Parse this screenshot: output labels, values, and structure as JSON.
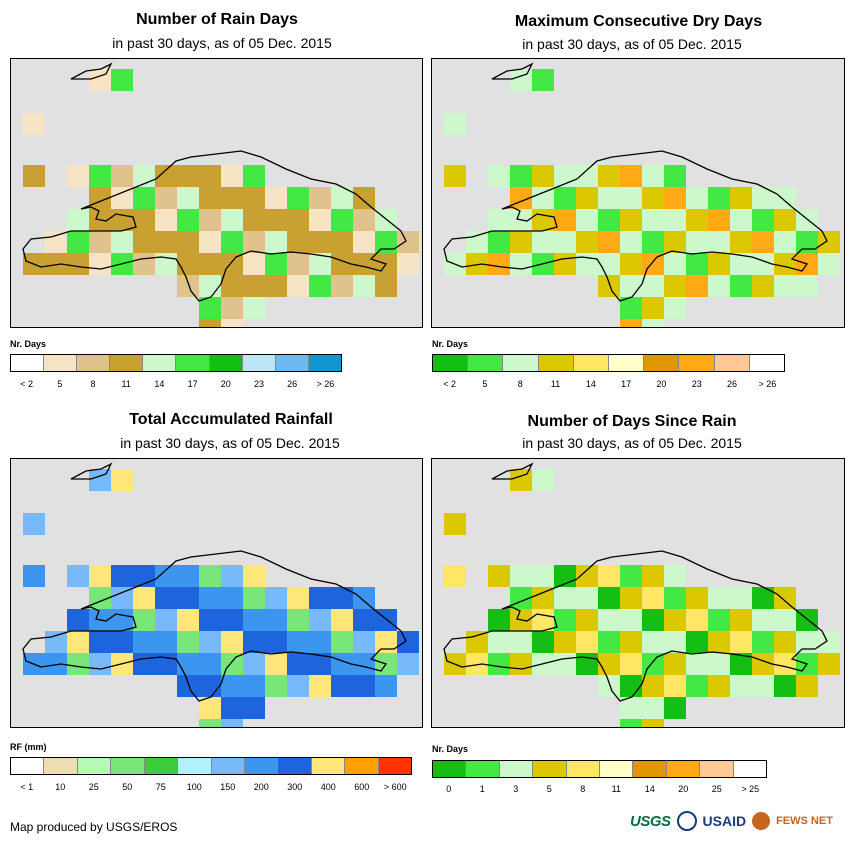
{
  "panels": [
    {
      "id": "rain-days",
      "title": "Number of Rain Days",
      "subtitle": "in past 30 days, as of 05 Dec. 2015",
      "legend": {
        "title": "Nr. Days",
        "colors": [
          "#ffffff",
          "#f6e4c4",
          "#e0c38c",
          "#c9a032",
          "#ccf8cc",
          "#44e844",
          "#14be14",
          "#bee6fa",
          "#6eb9f0",
          "#1496d2"
        ],
        "labels": [
          "< 2",
          "5",
          "8",
          "11",
          "14",
          "17",
          "20",
          "23",
          "26",
          "> 26"
        ]
      }
    },
    {
      "id": "max-dry-days",
      "title": "Maximum Consecutive Dry Days",
      "subtitle": "in past 30 days, as of 05 Dec. 2015",
      "legend": {
        "title": "Nr. Days",
        "colors": [
          "#14be14",
          "#44e844",
          "#ccf8cc",
          "#dcc800",
          "#ffe664",
          "#ffffc8",
          "#e09600",
          "#ffaa14",
          "#ffc896",
          "#ffffff"
        ],
        "labels": [
          "< 2",
          "5",
          "8",
          "11",
          "14",
          "17",
          "20",
          "23",
          "26",
          "> 26"
        ]
      }
    },
    {
      "id": "total-rainfall",
      "title": "Total Accumulated Rainfall",
      "subtitle": "in past 30 days, as of 05 Dec. 2015",
      "legend": {
        "title": "RF (mm)",
        "colors": [
          "#ffffff",
          "#f0dcb4",
          "#b4fab4",
          "#78e678",
          "#3ccd3c",
          "#b4f0fa",
          "#78b9fa",
          "#3c96f0",
          "#1e64dc",
          "#ffe678",
          "#ffa000",
          "#ff3200"
        ],
        "labels": [
          "< 1",
          "10",
          "25",
          "50",
          "75",
          "100",
          "150",
          "200",
          "300",
          "400",
          "600",
          "> 600"
        ]
      }
    },
    {
      "id": "days-since-rain",
      "title": "Number of Days Since Rain",
      "subtitle": "in past 30 days, as of 05 Dec. 2015",
      "legend": {
        "title": "Nr. Days",
        "colors": [
          "#14be14",
          "#44e844",
          "#ccf8cc",
          "#dcc800",
          "#ffe664",
          "#ffffc8",
          "#e09600",
          "#ffaa14",
          "#ffc896",
          "#ffffff"
        ],
        "labels": [
          "0",
          "1",
          "3",
          "5",
          "8",
          "11",
          "14",
          "20",
          "25",
          "> 25"
        ]
      }
    }
  ],
  "footer": {
    "credit": "Map produced by USGS/EROS",
    "logo_usgs": "USGS",
    "logo_usaid": "USAID",
    "logo_fews": "FEWS NET"
  }
}
